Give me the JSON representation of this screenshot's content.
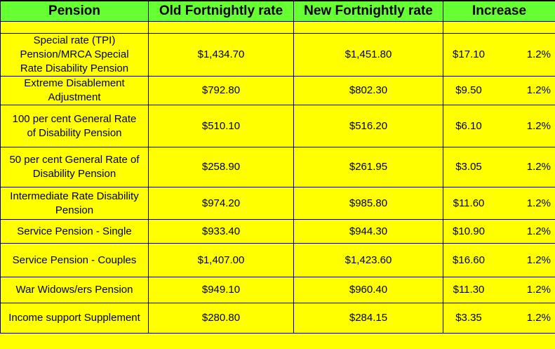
{
  "table": {
    "headers": {
      "pension": "Pension",
      "old_rate": "Old Fortnightly rate",
      "new_rate": "New Fortnightly rate",
      "increase": "Increase"
    },
    "rows": [
      {
        "pension": "Special rate (TPI) Pension/MRCA Special Rate Disability Pension",
        "old": "$1,434.70",
        "new": "$1,451.80",
        "increase": "$17.10",
        "percent": "1.2%"
      },
      {
        "pension": "Extreme Disablement Adjustment",
        "old": "$792.80",
        "new": "$802.30",
        "increase": "$9.50",
        "percent": "1.2%"
      },
      {
        "pension": "100 per cent General Rate of Disability Pension",
        "old": "$510.10",
        "new": "$516.20",
        "increase": "$6.10",
        "percent": "1.2%"
      },
      {
        "pension": "50 per cent General Rate of Disability Pension",
        "old": "$258.90",
        "new": "$261.95",
        "increase": "$3.05",
        "percent": "1.2%"
      },
      {
        "pension": "Intermediate Rate Disability Pension",
        "old": "$974.20",
        "new": "$985.80",
        "increase": "$11.60",
        "percent": "1.2%"
      },
      {
        "pension": "Service Pension - Single",
        "old": "$933.40",
        "new": "$944.30",
        "increase": "$10.90",
        "percent": "1.2%"
      },
      {
        "pension": "Service Pension - Couples",
        "old": "$1,407.00",
        "new": "$1,423.60",
        "increase": "$16.60",
        "percent": "1.2%"
      },
      {
        "pension": "War Widows/ers Pension",
        "old": "$949.10",
        "new": "$960.40",
        "increase": "$11.30",
        "percent": "1.2%"
      },
      {
        "pension": "Income support Supplement",
        "old": "$280.80",
        "new": "$284.15",
        "increase": "$3.35",
        "percent": "1.2%"
      }
    ]
  },
  "colors": {
    "header_bg": "#66ff33",
    "body_bg": "#ffff00",
    "border": "#000000"
  }
}
